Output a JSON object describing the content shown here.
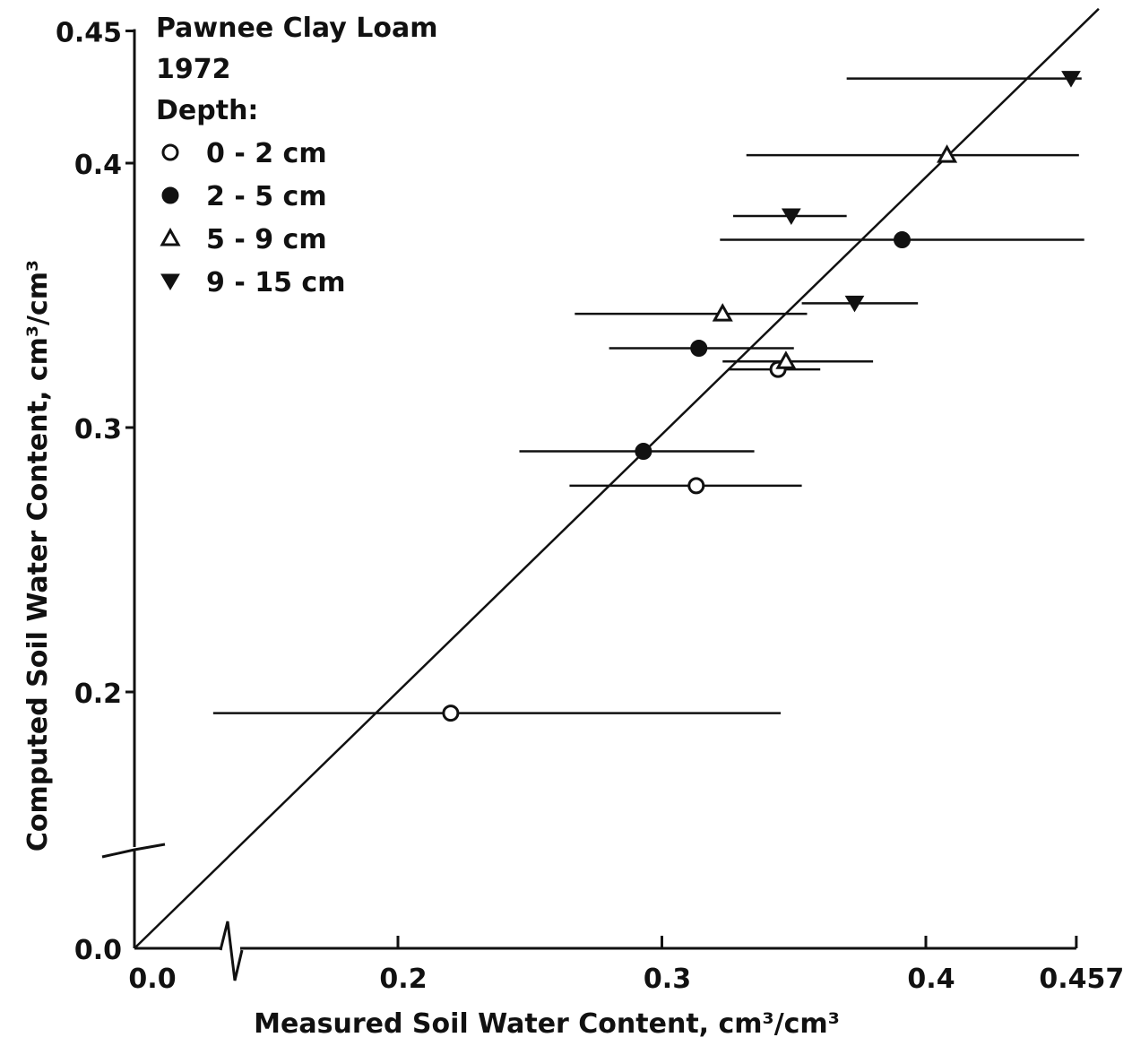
{
  "chart_data": {
    "type": "scatter",
    "title": "",
    "xlabel": "Measured Soil Water Content, cm³/cm³",
    "ylabel": "Computed Soil Water Content, cm³/cm³",
    "xlim": [
      0.0,
      0.457
    ],
    "ylim": [
      0.0,
      0.45
    ],
    "axis_breaks": true,
    "x_ticks": [
      {
        "value": 0.0,
        "label": "0.0"
      },
      {
        "value": 0.2,
        "label": "0.2"
      },
      {
        "value": 0.3,
        "label": "0.3"
      },
      {
        "value": 0.4,
        "label": "0.4"
      },
      {
        "value": 0.457,
        "label": "0.457"
      }
    ],
    "y_ticks": [
      {
        "value": 0.0,
        "label": "0.0"
      },
      {
        "value": 0.2,
        "label": "0.2"
      },
      {
        "value": 0.3,
        "label": "0.3"
      },
      {
        "value": 0.4,
        "label": "0.4"
      },
      {
        "value": 0.45,
        "label": "0.45"
      }
    ],
    "reference_line": "1:1",
    "legend": {
      "position": "top-left",
      "header": [
        "Pawnee Clay Loam",
        "1972",
        "Depth:"
      ]
    },
    "series": [
      {
        "name": "0 - 2 cm",
        "marker": "open-circle",
        "points": [
          {
            "x": 0.22,
            "y": 0.192,
            "x_min": 0.13,
            "x_max": 0.345
          },
          {
            "x": 0.313,
            "y": 0.278,
            "x_min": 0.265,
            "x_max": 0.353
          },
          {
            "x": 0.344,
            "y": 0.322,
            "x_min": 0.325,
            "x_max": 0.36
          }
        ]
      },
      {
        "name": "2 - 5 cm",
        "marker": "filled-circle",
        "points": [
          {
            "x": 0.293,
            "y": 0.291,
            "x_min": 0.246,
            "x_max": 0.335
          },
          {
            "x": 0.314,
            "y": 0.33,
            "x_min": 0.28,
            "x_max": 0.35
          },
          {
            "x": 0.391,
            "y": 0.371,
            "x_min": 0.322,
            "x_max": 0.46
          }
        ]
      },
      {
        "name": "5 - 9 cm",
        "marker": "open-triangle-up",
        "points": [
          {
            "x": 0.323,
            "y": 0.343,
            "x_min": 0.267,
            "x_max": 0.355
          },
          {
            "x": 0.347,
            "y": 0.325,
            "x_min": 0.323,
            "x_max": 0.38
          },
          {
            "x": 0.408,
            "y": 0.403,
            "x_min": 0.332,
            "x_max": 0.458
          }
        ]
      },
      {
        "name": "9 - 15 cm",
        "marker": "filled-triangle-down",
        "points": [
          {
            "x": 0.349,
            "y": 0.38,
            "x_min": 0.327,
            "x_max": 0.37
          },
          {
            "x": 0.373,
            "y": 0.347,
            "x_min": 0.353,
            "x_max": 0.397
          },
          {
            "x": 0.455,
            "y": 0.432,
            "x_min": 0.37,
            "x_max": 0.459
          }
        ]
      }
    ]
  }
}
